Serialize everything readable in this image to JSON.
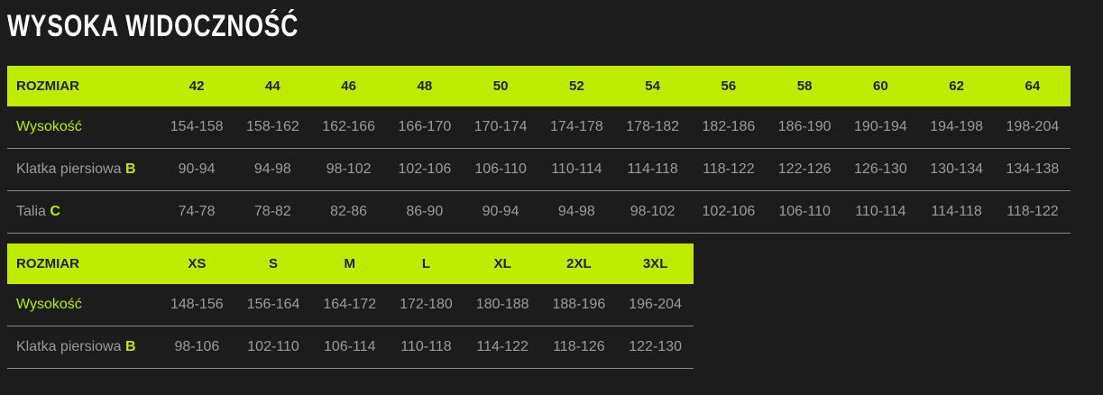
{
  "title": "WYSOKA WIDOCZNOŚĆ",
  "colors": {
    "accent": "#bfeb00",
    "background": "#1c1c1c",
    "text": "#9a9a9a"
  },
  "tables": [
    {
      "header_label": "ROZMIAR",
      "sizes": [
        "42",
        "44",
        "46",
        "48",
        "50",
        "52",
        "54",
        "56",
        "58",
        "60",
        "62",
        "64"
      ],
      "rows": [
        {
          "label": "Wysokość",
          "highlight": "",
          "accent_label": true,
          "values": [
            "154-158",
            "158-162",
            "162-166",
            "166-170",
            "170-174",
            "174-178",
            "178-182",
            "182-186",
            "186-190",
            "190-194",
            "194-198",
            "198-204"
          ]
        },
        {
          "label": "Klatka piersiowa",
          "highlight": "B",
          "accent_label": false,
          "values": [
            "90-94",
            "94-98",
            "98-102",
            "102-106",
            "106-110",
            "110-114",
            "114-118",
            "118-122",
            "122-126",
            "126-130",
            "130-134",
            "134-138"
          ]
        },
        {
          "label": "Talia",
          "highlight": "C",
          "accent_label": false,
          "values": [
            "74-78",
            "78-82",
            "82-86",
            "86-90",
            "90-94",
            "94-98",
            "98-102",
            "102-106",
            "106-110",
            "110-114",
            "114-118",
            "118-122"
          ]
        }
      ]
    },
    {
      "header_label": "ROZMIAR",
      "sizes": [
        "XS",
        "S",
        "M",
        "L",
        "XL",
        "2XL",
        "3XL"
      ],
      "rows": [
        {
          "label": "Wysokość",
          "highlight": "",
          "accent_label": true,
          "values": [
            "148-156",
            "156-164",
            "164-172",
            "172-180",
            "180-188",
            "188-196",
            "196-204"
          ]
        },
        {
          "label": "Klatka piersiowa",
          "highlight": "B",
          "accent_label": false,
          "values": [
            "98-106",
            "102-110",
            "106-114",
            "110-118",
            "114-122",
            "118-126",
            "122-130"
          ]
        }
      ]
    }
  ]
}
